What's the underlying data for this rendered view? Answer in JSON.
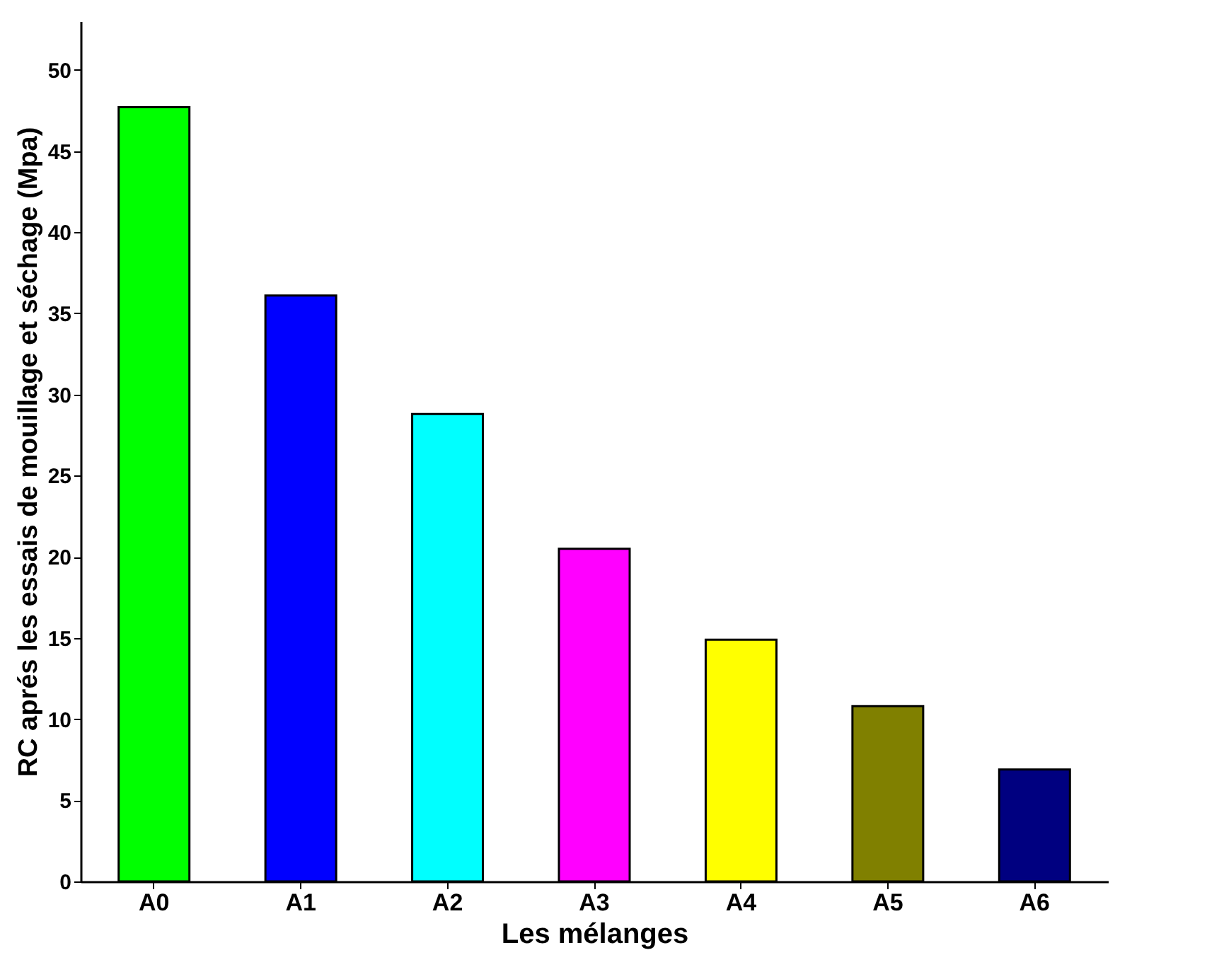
{
  "chart_data": {
    "type": "bar",
    "xlabel": "Les mélanges",
    "ylabel": "RC aprés les essais de mouillage et séchage (Mpa)",
    "categories": [
      "A0",
      "A1",
      "A2",
      "A3",
      "A4",
      "A5",
      "A6"
    ],
    "values": [
      47.7,
      36.1,
      28.8,
      20.5,
      14.9,
      10.8,
      6.9
    ],
    "colors": [
      "#00ff00",
      "#0000ff",
      "#00ffff",
      "#ff00ff",
      "#ffff00",
      "#808000",
      "#000080"
    ],
    "ylim": [
      0,
      53
    ],
    "yticks": [
      0,
      5,
      10,
      15,
      20,
      25,
      30,
      35,
      40,
      45,
      50
    ],
    "grid": false
  }
}
